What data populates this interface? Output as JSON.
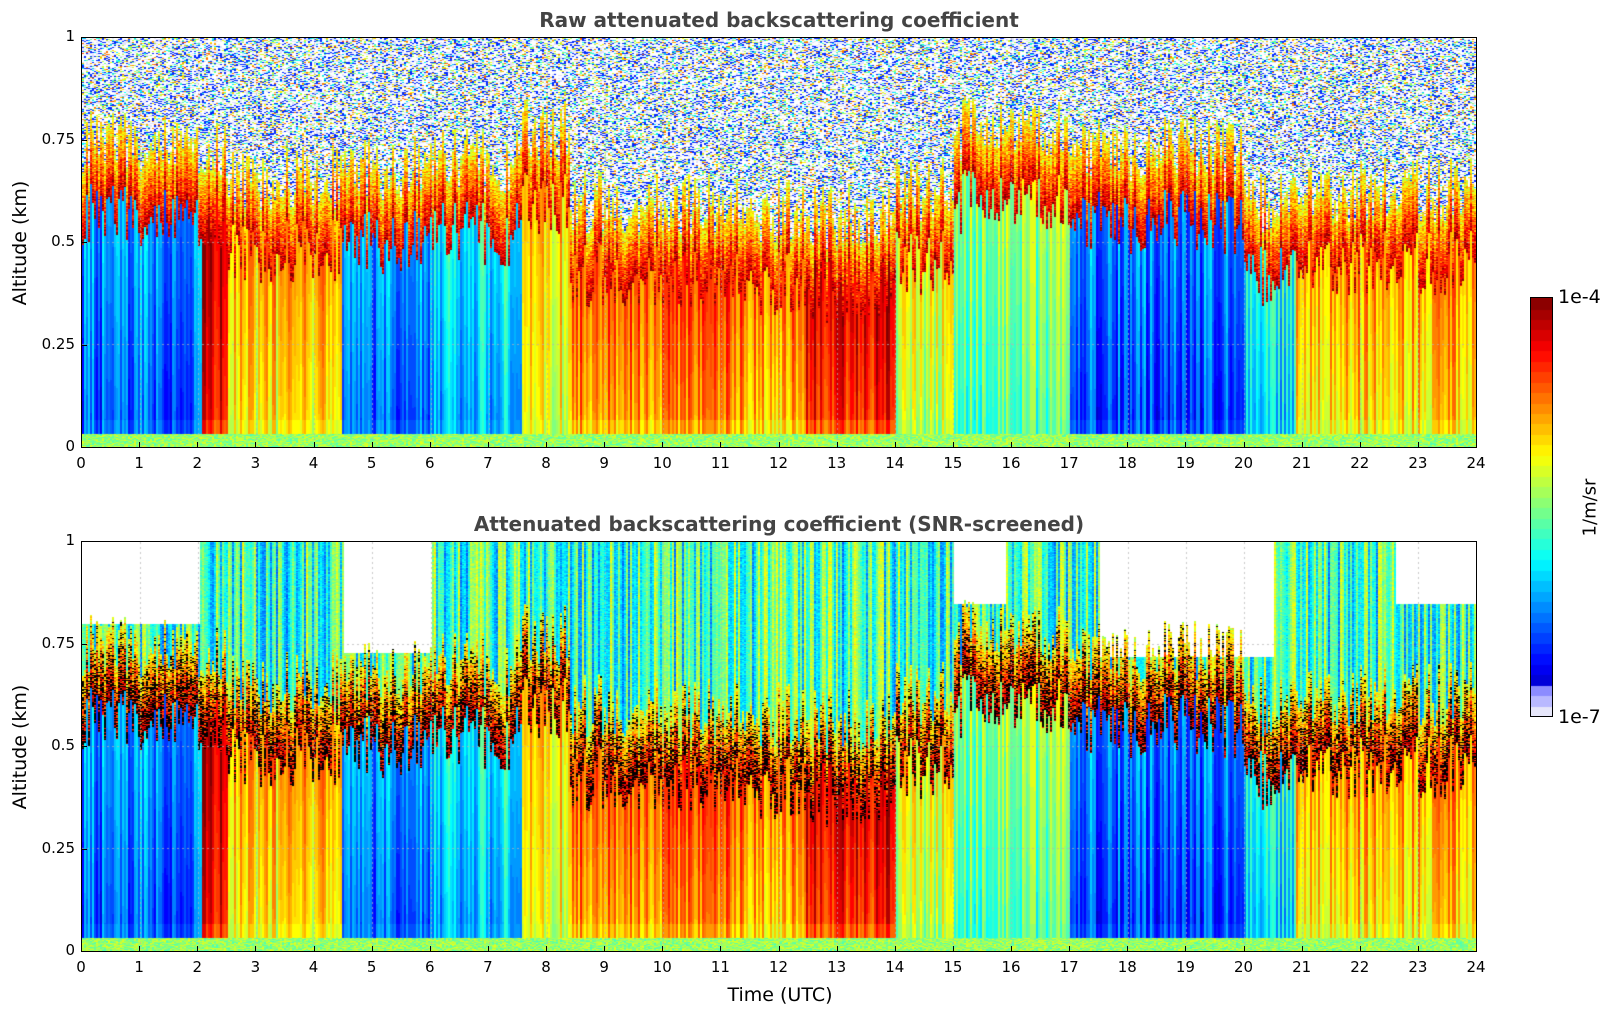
{
  "chart_data": [
    {
      "type": "heatmap",
      "title": "Raw attenuated backscattering coefficient",
      "xlabel": "",
      "ylabel": "Altitude (km)",
      "xlim": [
        0,
        24
      ],
      "ylim": [
        0,
        1
      ],
      "x_ticks": [
        "0",
        "1",
        "2",
        "3",
        "4",
        "5",
        "6",
        "7",
        "8",
        "9",
        "10",
        "11",
        "12",
        "13",
        "14",
        "15",
        "16",
        "17",
        "18",
        "19",
        "20",
        "21",
        "22",
        "23",
        "24"
      ],
      "y_ticks": [
        "0",
        "0.25",
        "0.5",
        "0.75",
        "1"
      ],
      "grid": true,
      "screened": false,
      "segments_note": "log10 backscatter level in boundary layer (normalized 0=1e-7, 1=1e-4) by time interval (UTC hours), and top of aerosol layer (km)",
      "segments": [
        {
          "t0": 0,
          "t1": 2.05,
          "level": 0.2,
          "layer_top_km": 0.57
        },
        {
          "t0": 2.05,
          "t1": 2.5,
          "level": 0.85,
          "layer_top_km": 0.55
        },
        {
          "t0": 2.5,
          "t1": 4.45,
          "level": 0.62,
          "layer_top_km": 0.48
        },
        {
          "t0": 4.45,
          "t1": 6.0,
          "level": 0.2,
          "layer_top_km": 0.5
        },
        {
          "t0": 6.0,
          "t1": 7.55,
          "level": 0.3,
          "layer_top_km": 0.52
        },
        {
          "t0": 7.55,
          "t1": 8.4,
          "level": 0.6,
          "layer_top_km": 0.6
        },
        {
          "t0": 8.4,
          "t1": 11.4,
          "level": 0.72,
          "layer_top_km": 0.42
        },
        {
          "t0": 11.4,
          "t1": 12.4,
          "level": 0.68,
          "layer_top_km": 0.4
        },
        {
          "t0": 12.4,
          "t1": 14.0,
          "level": 0.82,
          "layer_top_km": 0.38
        },
        {
          "t0": 14.0,
          "t1": 15.0,
          "level": 0.55,
          "layer_top_km": 0.45
        },
        {
          "t0": 15.0,
          "t1": 17.0,
          "level": 0.45,
          "layer_top_km": 0.6
        },
        {
          "t0": 17.0,
          "t1": 20.0,
          "level": 0.18,
          "layer_top_km": 0.55
        },
        {
          "t0": 20.0,
          "t1": 20.9,
          "level": 0.32,
          "layer_top_km": 0.42
        },
        {
          "t0": 20.9,
          "t1": 24.0,
          "level": 0.65,
          "layer_top_km": 0.45
        }
      ]
    },
    {
      "type": "heatmap",
      "title": "Attenuated backscattering coefficient (SNR-screened)",
      "xlabel": "Time (UTC)",
      "ylabel": "Altitude (km)",
      "xlim": [
        0,
        24
      ],
      "ylim": [
        0,
        1
      ],
      "x_ticks": [
        "0",
        "1",
        "2",
        "3",
        "4",
        "5",
        "6",
        "7",
        "8",
        "9",
        "10",
        "11",
        "12",
        "13",
        "14",
        "15",
        "16",
        "17",
        "18",
        "19",
        "20",
        "21",
        "22",
        "23",
        "24"
      ],
      "y_ticks": [
        "0",
        "0.25",
        "0.5",
        "0.75",
        "1"
      ],
      "grid": true,
      "screened": true,
      "screened_gaps_note": "time intervals (UTC hours) where upper altitudes are blanked (white) down to given altitude (km)",
      "screened_gaps": [
        {
          "t0": 0.0,
          "t1": 2.0,
          "down_to_km": 0.8
        },
        {
          "t0": 4.5,
          "t1": 6.0,
          "down_to_km": 0.73
        },
        {
          "t0": 15.0,
          "t1": 15.9,
          "down_to_km": 0.85
        },
        {
          "t0": 17.5,
          "t1": 20.5,
          "down_to_km": 0.72
        },
        {
          "t0": 22.6,
          "t1": 24.0,
          "down_to_km": 0.85
        }
      ]
    }
  ],
  "colorbar": {
    "max_label": "1e-4",
    "min_label": "1e-7",
    "unit": "1/m/sr",
    "colormap": "jet"
  }
}
